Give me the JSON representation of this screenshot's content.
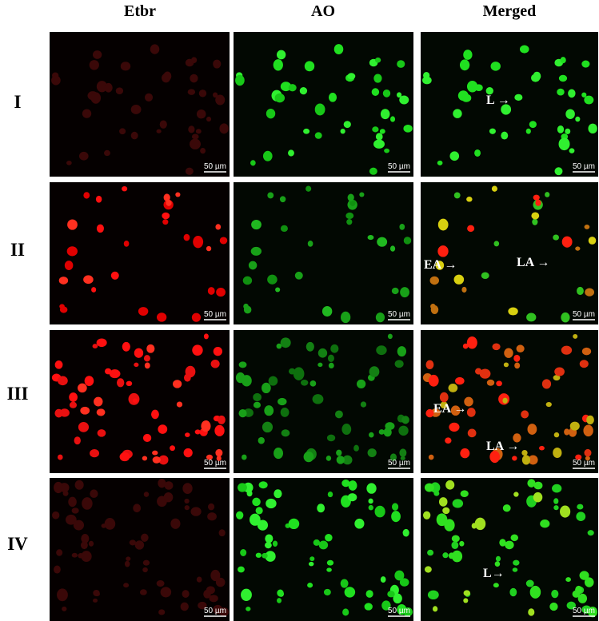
{
  "header": {
    "columns": [
      "Etbr",
      "AO",
      "Merged"
    ]
  },
  "rows": [
    {
      "label": "I",
      "scale_bars": [
        "50 µm",
        "50 µm",
        "50 µm"
      ],
      "annotations": [
        "L →"
      ]
    },
    {
      "label": "II",
      "scale_bars": [
        "50 µm",
        "50 µm",
        "50 µm"
      ],
      "annotations": [
        "EA →",
        "LA →"
      ]
    },
    {
      "label": "III",
      "scale_bars": [
        "50 µm",
        "50 µm",
        "50 µm"
      ],
      "annotations": [
        "EA →",
        "LA →"
      ]
    },
    {
      "label": "IV",
      "scale_bars": [
        "50 µm",
        "50 µm",
        "50 µm"
      ],
      "annotations": [
        "L→"
      ]
    }
  ]
}
